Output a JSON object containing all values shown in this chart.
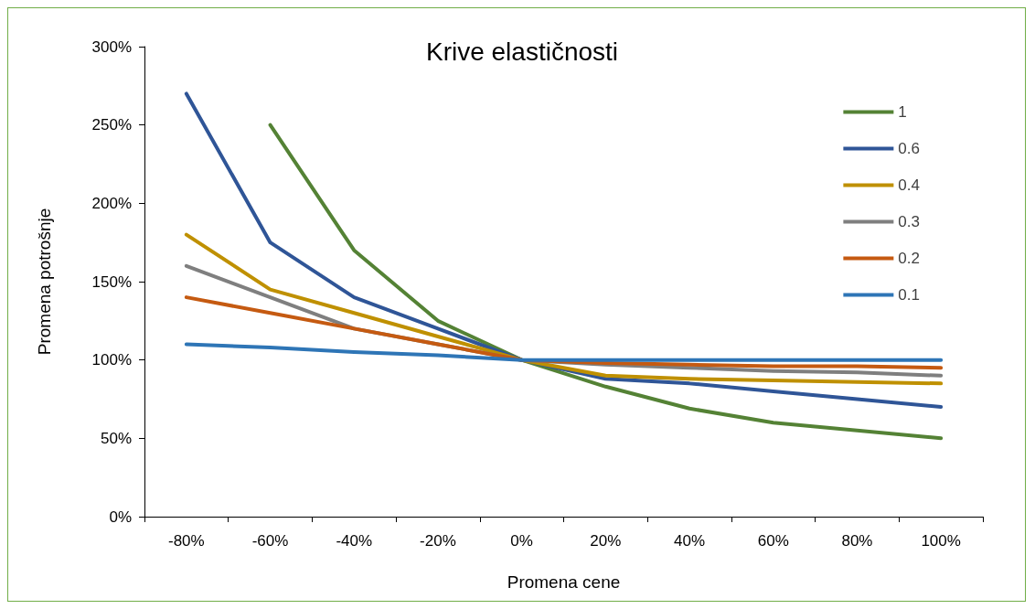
{
  "chart_data": {
    "type": "line",
    "title": "Krive elastičnosti",
    "xlabel": "Promena cene",
    "ylabel": "Promena potrošnje",
    "categories": [
      "-80%",
      "-60%",
      "-40%",
      "-20%",
      "0%",
      "20%",
      "40%",
      "60%",
      "80%",
      "100%"
    ],
    "series": [
      {
        "name": "1",
        "color": "#548235",
        "values": [
          null,
          250,
          170,
          125,
          100,
          83,
          69,
          60,
          55,
          50
        ]
      },
      {
        "name": "0.6",
        "color": "#2f5597",
        "values": [
          270,
          175,
          140,
          120,
          100,
          88,
          85,
          80,
          75,
          70
        ]
      },
      {
        "name": "0.4",
        "color": "#bf9000",
        "values": [
          180,
          145,
          130,
          115,
          100,
          90,
          88,
          87,
          86,
          85
        ]
      },
      {
        "name": "0.3",
        "color": "#7f7f7f",
        "values": [
          160,
          140,
          120,
          110,
          100,
          97,
          95,
          93,
          92,
          90
        ]
      },
      {
        "name": "0.2",
        "color": "#c55a11",
        "values": [
          140,
          130,
          120,
          110,
          100,
          98,
          97,
          96,
          96,
          95
        ]
      },
      {
        "name": "0.1",
        "color": "#2e75b6",
        "values": [
          110,
          108,
          105,
          103,
          100,
          100,
          100,
          100,
          100,
          100
        ]
      }
    ],
    "ylim": [
      0,
      300
    ],
    "yticks": [
      {
        "value": 0,
        "label": "0%"
      },
      {
        "value": 50,
        "label": "50%"
      },
      {
        "value": 100,
        "label": "100%"
      },
      {
        "value": 150,
        "label": "150%"
      },
      {
        "value": 200,
        "label": "200%"
      },
      {
        "value": 250,
        "label": "250%"
      },
      {
        "value": 300,
        "label": "300%"
      }
    ],
    "legend": "top right",
    "grid": false,
    "marker": "none",
    "line_style": "solid"
  }
}
